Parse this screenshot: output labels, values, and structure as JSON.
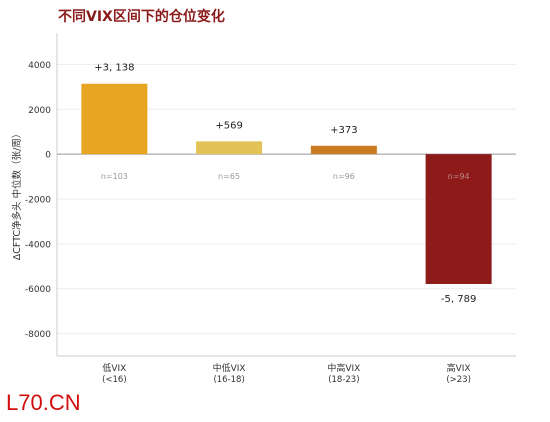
{
  "chart_data": {
    "type": "bar",
    "title": "不同VIX区间下的仓位变化",
    "ylabel": "ΔCFTC净多头 中位数（张/周）",
    "xlabel": "",
    "ylim": [
      -9000,
      5400
    ],
    "yticks": [
      4000,
      2000,
      0,
      -2000,
      -4000,
      -6000,
      -8000
    ],
    "categories": [
      [
        "低VIX",
        "(<16)"
      ],
      [
        "中低VIX",
        "(16-18)"
      ],
      [
        "中高VIX",
        "(18-23)"
      ],
      [
        "高VIX",
        "(>23)"
      ]
    ],
    "values": [
      3138,
      569,
      373,
      -5789
    ],
    "value_labels": [
      "+3, 138",
      "+569",
      "+373",
      "-5, 789"
    ],
    "count_labels": [
      "n=103",
      "n=65",
      "n=96",
      "n=94"
    ],
    "colors": [
      "#E8A521",
      "#E2C456",
      "#C97C22",
      "#8E1A1A"
    ],
    "grid": true
  },
  "watermark": "L70.CN"
}
